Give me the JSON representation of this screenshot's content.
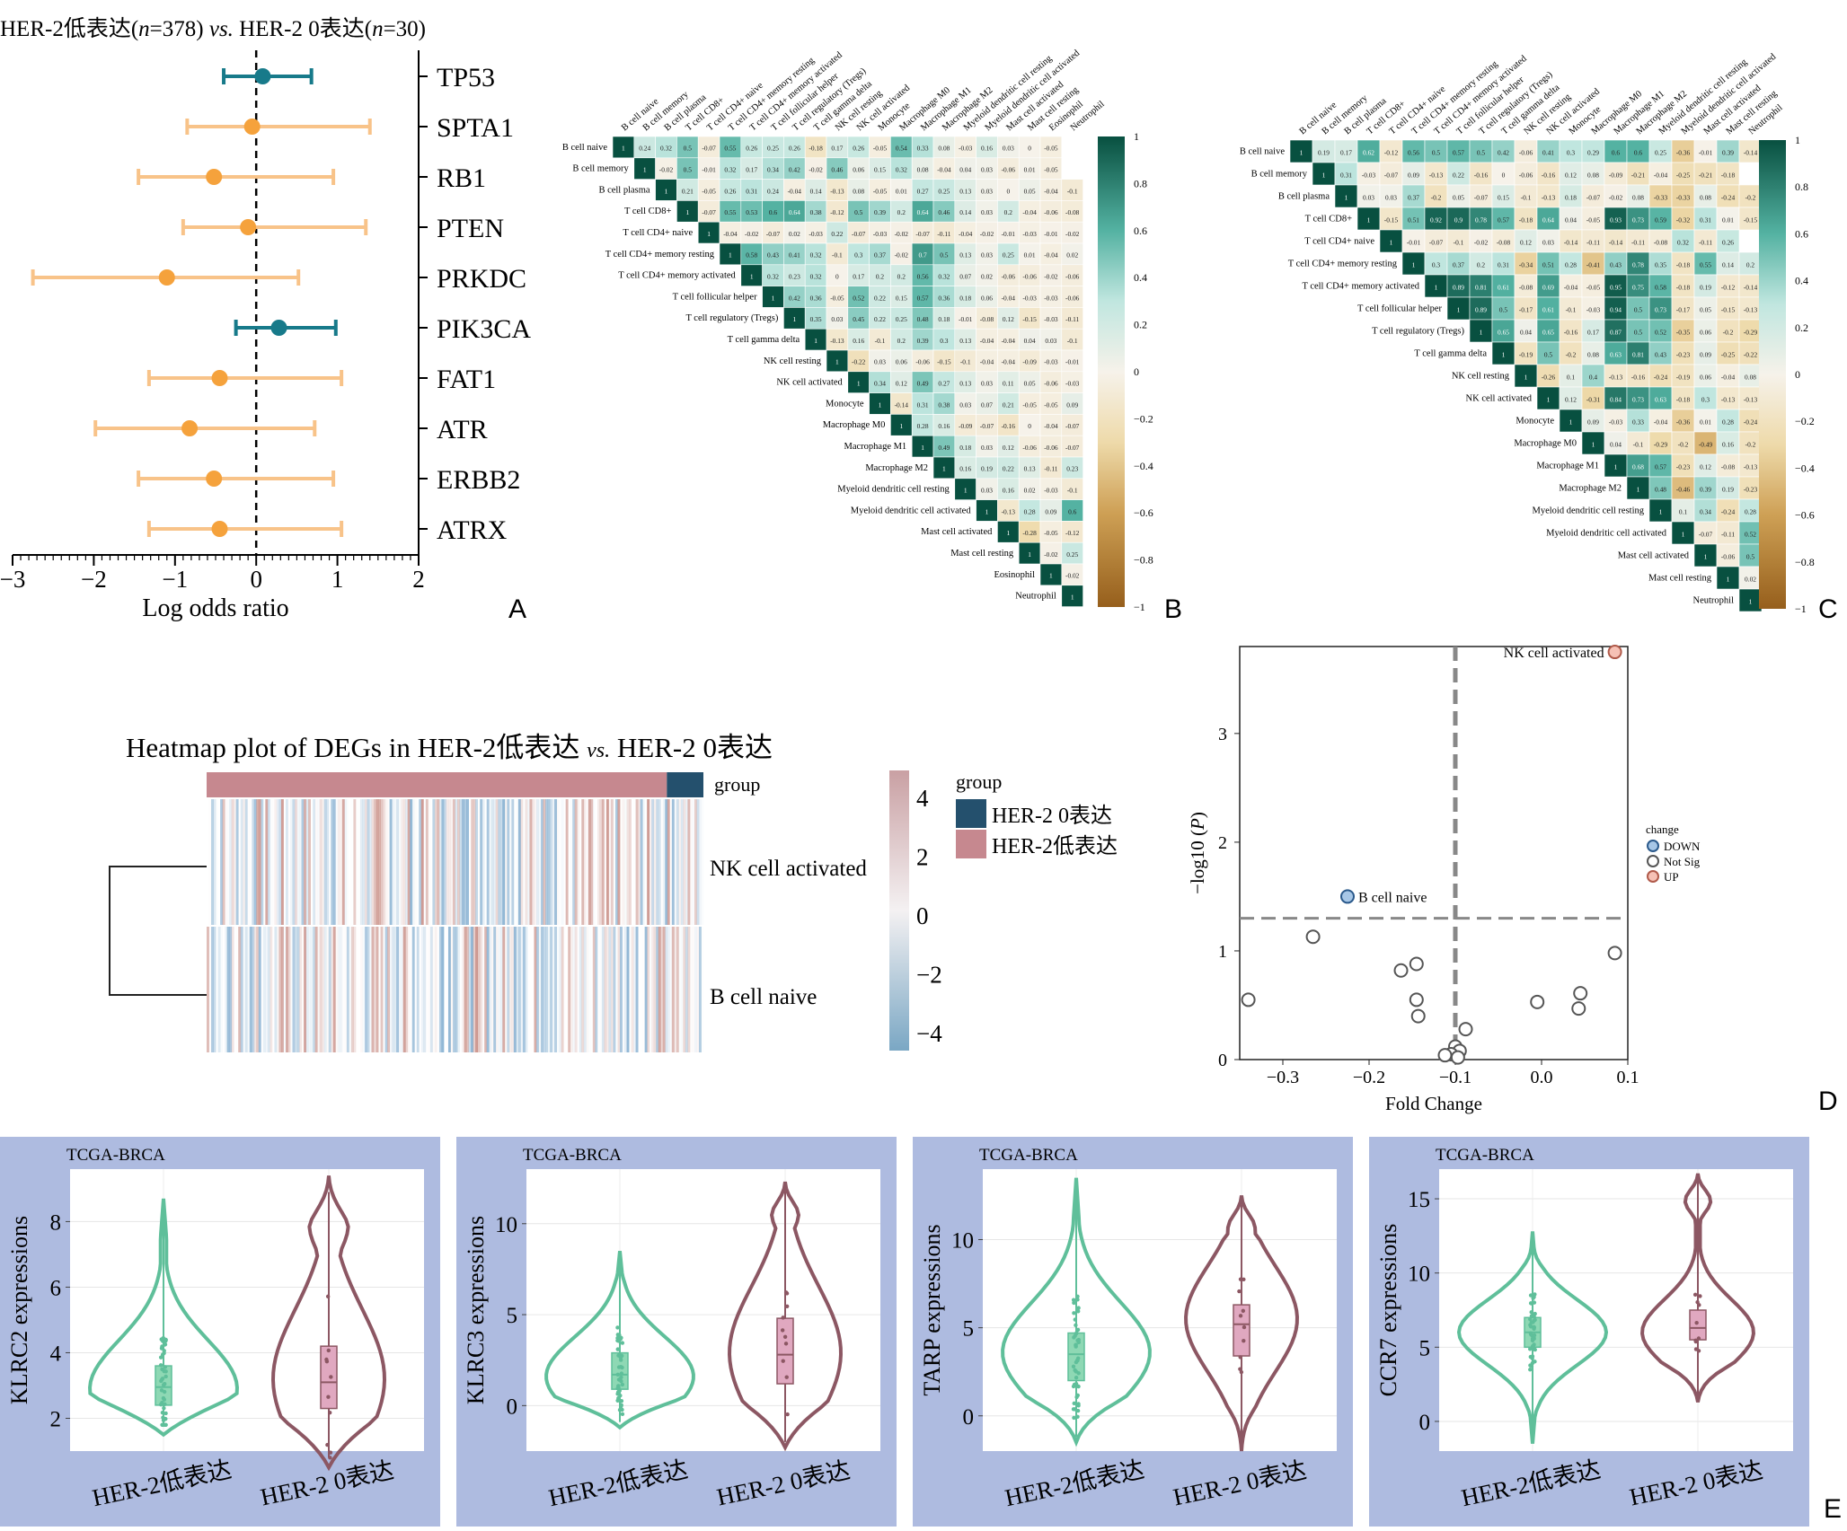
{
  "panel_letters": {
    "A": "A",
    "B": "B",
    "C": "C",
    "D": "D",
    "E": "E"
  },
  "chart_data": [
    {
      "id": "A",
      "type": "scatter",
      "subtype": "forest",
      "title_parts": [
        "HER-2低表达(",
        "n",
        "=378) ",
        "vs.",
        " HER-2 0表达(",
        "n",
        "=30)"
      ],
      "xlabel": "Log odds ratio",
      "xlim": [
        -3,
        2
      ],
      "xticks": [
        -3,
        -2,
        -1,
        0,
        1,
        2
      ],
      "xtick_labels": [
        "−3",
        "−2",
        "−1",
        "0",
        "1",
        "2"
      ],
      "reference_line": 0,
      "colors": {
        "teal": "#177a8a",
        "orange": "#f5a23c",
        "orange_ci": "#f8c389"
      },
      "genes": [
        {
          "name": "TP53",
          "or": 0.08,
          "lo": -0.4,
          "hi": 0.68,
          "color": "teal"
        },
        {
          "name": "SPTA1",
          "or": -0.05,
          "lo": -0.85,
          "hi": 1.4,
          "color": "orange"
        },
        {
          "name": "RB1",
          "or": -0.52,
          "lo": -1.45,
          "hi": 0.95,
          "color": "orange"
        },
        {
          "name": "PTEN",
          "or": -0.1,
          "lo": -0.9,
          "hi": 1.35,
          "color": "orange"
        },
        {
          "name": "PRKDC",
          "or": -1.1,
          "lo": -2.75,
          "hi": 0.52,
          "color": "orange"
        },
        {
          "name": "PIK3CA",
          "or": 0.28,
          "lo": -0.25,
          "hi": 0.98,
          "color": "teal"
        },
        {
          "name": "FAT1",
          "or": -0.45,
          "lo": -1.32,
          "hi": 1.05,
          "color": "orange"
        },
        {
          "name": "ATR",
          "or": -0.82,
          "lo": -1.98,
          "hi": 0.72,
          "color": "orange"
        },
        {
          "name": "ERBB2",
          "or": -0.52,
          "lo": -1.45,
          "hi": 0.95,
          "color": "orange"
        },
        {
          "name": "ATRX",
          "or": -0.45,
          "lo": -1.32,
          "hi": 1.05,
          "color": "orange"
        }
      ]
    },
    {
      "id": "B",
      "type": "heatmap",
      "subtype": "correlation-upper-triangle",
      "labels": [
        "B cell naive",
        "B cell memory",
        "B cell plasma",
        "T cell CD8+",
        "T cell CD4+ naive",
        "T cell CD4+ memory resting",
        "T cell CD4+ memory activated",
        "T cell follicular helper",
        "T cell regulatory (Tregs)",
        "T cell gamma delta",
        "NK cell resting",
        "NK cell activated",
        "Monocyte",
        "Macrophage M0",
        "Macrophage M1",
        "Macrophage M2",
        "Myeloid dendritic cell resting",
        "Myeloid dendritic cell activated",
        "Mast cell activated",
        "Mast cell resting",
        "Eosinophil",
        "Neutrophil"
      ],
      "colorbar_ticks": [
        1,
        0.8,
        0.6,
        0.4,
        0.2,
        0,
        -0.2,
        -0.4,
        -0.6,
        -0.8,
        -1
      ],
      "colorbar_labels": [
        "1",
        "0.8",
        "0.6",
        "0.4",
        "0.2",
        "0",
        "−0.2",
        "−0.4",
        "−0.6",
        "−0.8",
        "−1"
      ],
      "rows": [
        [
          1,
          0.24,
          0.32,
          0.5,
          -0.07,
          0.55,
          0.26,
          0.25,
          0.26,
          -0.18,
          0.17,
          0.26,
          -0.05,
          0.54,
          0.33,
          0.08,
          -0.03,
          0.16,
          0.03,
          0,
          -0.05
        ],
        [
          1,
          -0.02,
          0.5,
          -0.01,
          0.32,
          0.17,
          0.34,
          0.42,
          -0.02,
          0.46,
          0.06,
          0.15,
          0.32,
          0.08,
          -0.04,
          0.04,
          0.03,
          -0.06,
          0.01,
          -0.05
        ],
        [
          1,
          0.21,
          -0.05,
          0.26,
          0.31,
          0.24,
          -0.04,
          0.14,
          -0.13,
          0.08,
          -0.05,
          0.01,
          0.27,
          0.25,
          0.13,
          0.03,
          0,
          0.05,
          -0.04,
          -0.1
        ],
        [
          1,
          -0.07,
          0.55,
          0.53,
          0.6,
          0.64,
          0.38,
          -0.12,
          0.5,
          0.39,
          0.2,
          0.64,
          0.46,
          0.14,
          0.03,
          0.2,
          -0.04,
          -0.06,
          -0.08
        ],
        [
          1,
          -0.04,
          -0.02,
          -0.07,
          0.02,
          -0.03,
          0.22,
          -0.07,
          -0.03,
          -0.02,
          -0.07,
          -0.11,
          -0.04,
          -0.02,
          -0.01,
          -0.03,
          -0.01,
          -0.02
        ],
        [
          1,
          0.58,
          0.43,
          0.41,
          0.32,
          -0.1,
          0.3,
          0.37,
          -0.02,
          0.7,
          0.5,
          0.13,
          0.03,
          0.25,
          0.01,
          -0.04,
          0.02
        ],
        [
          1,
          0.32,
          0.23,
          0.32,
          0,
          0.17,
          0.2,
          0.2,
          0.56,
          0.32,
          0.07,
          0.02,
          -0.06,
          -0.06,
          -0.02,
          -0.06
        ],
        [
          1,
          0.42,
          0.36,
          -0.05,
          0.52,
          0.22,
          0.15,
          0.57,
          0.36,
          0.18,
          0.06,
          -0.04,
          -0.03,
          -0.03,
          -0.06
        ],
        [
          1,
          0.35,
          0.03,
          0.45,
          0.22,
          0.25,
          0.48,
          0.18,
          -0.01,
          -0.08,
          0.12,
          -0.15,
          -0.03,
          -0.11
        ],
        [
          1,
          -0.13,
          0.16,
          -0.1,
          0.2,
          0.39,
          0.3,
          0.13,
          -0.04,
          -0.04,
          0.04,
          0.03,
          -0.1
        ],
        [
          1,
          -0.22,
          0.03,
          0.06,
          -0.06,
          -0.15,
          -0.1,
          -0.04,
          -0.04,
          -0.09,
          -0.03,
          -0.01
        ],
        [
          1,
          0.34,
          0.12,
          0.49,
          0.27,
          0.13,
          0.03,
          0.11,
          0.05,
          -0.06,
          -0.03
        ],
        [
          1,
          -0.14,
          0.31,
          0.38,
          0.03,
          0.07,
          0.21,
          -0.05,
          -0.05,
          0.09
        ],
        [
          1,
          0.28,
          0.16,
          -0.09,
          -0.07,
          -0.16,
          0,
          -0.04,
          -0.07
        ],
        [
          1,
          0.49,
          0.18,
          0.03,
          0.12,
          -0.06,
          -0.06,
          -0.07
        ],
        [
          1,
          0.16,
          0.19,
          0.22,
          0.13,
          -0.11,
          0.23
        ],
        [
          1,
          0.03,
          0.16,
          0.02,
          -0.03,
          -0.1
        ],
        [
          1,
          -0.13,
          0.28,
          0.09,
          0.6
        ],
        [
          1,
          -0.28,
          -0.05,
          -0.12
        ],
        [
          1,
          -0.02,
          0.25
        ],
        [
          1,
          -0.02
        ],
        [
          1
        ]
      ]
    },
    {
      "id": "C",
      "type": "heatmap",
      "subtype": "correlation-upper-triangle",
      "labels": [
        "B cell naive",
        "B cell memory",
        "B cell plasma",
        "T cell CD8+",
        "T cell CD4+ naive",
        "T cell CD4+ memory resting",
        "T cell CD4+ memory activated",
        "T cell follicular helper",
        "T cell regulatory (Tregs)",
        "T cell gamma delta",
        "NK cell resting",
        "NK cell activated",
        "Monocyte",
        "Macrophage M0",
        "Macrophage M1",
        "Macrophage M2",
        "Myeloid dendritic cell resting",
        "Myeloid dendritic cell activated",
        "Mast cell activated",
        "Mast cell resting",
        "Neutrophil"
      ],
      "colorbar_ticks": [
        1,
        0.8,
        0.6,
        0.4,
        0.2,
        0,
        -0.2,
        -0.4,
        -0.6,
        -0.8,
        -1
      ],
      "colorbar_labels": [
        "1",
        "0.8",
        "0.6",
        "0.4",
        "0.2",
        "0",
        "−0.2",
        "−0.4",
        "−0.6",
        "−0.8",
        "−1"
      ],
      "rows": [
        [
          1,
          0.19,
          0.17,
          0.62,
          -0.12,
          0.56,
          0.5,
          0.57,
          0.5,
          0.42,
          -0.06,
          0.41,
          0.3,
          0.29,
          0.6,
          0.6,
          0.25,
          -0.36,
          -0.01,
          0.39,
          -0.14
        ],
        [
          1,
          0.31,
          -0.03,
          -0.07,
          0.09,
          -0.13,
          0.22,
          -0.16,
          0,
          -0.06,
          -0.16,
          0.12,
          0.08,
          -0.09,
          -0.21,
          -0.04,
          -0.25,
          -0.21,
          -0.18
        ],
        [
          1,
          0.03,
          0.03,
          0.37,
          -0.2,
          0.05,
          -0.07,
          0.15,
          -0.1,
          -0.13,
          0.18,
          -0.07,
          -0.02,
          0.08,
          -0.33,
          -0.33,
          0.08,
          -0.24,
          -0.2
        ],
        [
          1,
          -0.15,
          0.51,
          0.92,
          0.9,
          0.78,
          0.57,
          -0.18,
          0.64,
          0.04,
          -0.05,
          0.93,
          0.73,
          0.59,
          -0.32,
          0.31,
          0.01,
          -0.15
        ],
        [
          1,
          -0.01,
          -0.07,
          -0.1,
          -0.02,
          -0.08,
          0.12,
          0.03,
          -0.14,
          -0.11,
          -0.14,
          -0.11,
          -0.08,
          0.32,
          -0.11,
          0.26
        ],
        [
          1,
          0.3,
          0.37,
          0.2,
          0.31,
          -0.34,
          0.51,
          0.28,
          -0.41,
          0.43,
          0.78,
          0.35,
          -0.18,
          0.55,
          0.14,
          0.2
        ],
        [
          1,
          0.89,
          0.81,
          0.61,
          -0.08,
          0.69,
          -0.04,
          -0.05,
          0.95,
          0.75,
          0.58,
          -0.18,
          0.19,
          -0.12,
          -0.14
        ],
        [
          1,
          0.89,
          0.5,
          -0.17,
          0.61,
          -0.1,
          -0.03,
          0.94,
          0.5,
          0.73,
          -0.17,
          0.05,
          -0.15,
          -0.13
        ],
        [
          1,
          0.65,
          0.04,
          0.65,
          -0.16,
          0.17,
          0.87,
          0.5,
          0.52,
          -0.35,
          0.06,
          -0.2,
          -0.29
        ],
        [
          1,
          -0.19,
          0.5,
          -0.2,
          0.08,
          0.63,
          0.81,
          0.43,
          -0.23,
          0.09,
          -0.25,
          -0.22
        ],
        [
          1,
          -0.26,
          0.1,
          0.4,
          -0.13,
          -0.16,
          -0.24,
          -0.19,
          0.06,
          -0.04,
          0.08
        ],
        [
          1,
          0.12,
          -0.31,
          0.84,
          0.73,
          0.63,
          -0.18,
          0.3,
          -0.13,
          -0.13
        ],
        [
          1,
          0.09,
          -0.03,
          0.33,
          -0.04,
          -0.36,
          0.01,
          0.28,
          -0.24
        ],
        [
          1,
          0.04,
          -0.1,
          -0.29,
          -0.2,
          -0.49,
          0.16,
          -0.2
        ],
        [
          1,
          0.68,
          0.57,
          -0.23,
          0.12,
          -0.08,
          -0.13
        ],
        [
          1,
          0.48,
          -0.46,
          0.39,
          0.19,
          -0.23
        ],
        [
          1,
          0.1,
          0.34,
          -0.24,
          0.28
        ],
        [
          1,
          -0.07,
          -0.11,
          0.52
        ],
        [
          1,
          -0.06,
          0.5
        ],
        [
          1,
          0.02
        ],
        [
          1
        ]
      ]
    },
    {
      "id": "heatmap-degs",
      "type": "heatmap",
      "title_parts": [
        "Heatmap plot of DEGs in HER-2低表达 ",
        "vs.",
        " HER-2 0表达"
      ],
      "rows": [
        "NK cell activated",
        "B cell naive"
      ],
      "group_label": "group",
      "legend_title": "group",
      "groups": [
        {
          "name": "HER-2 0表达",
          "color": "#24506d",
          "n": 30
        },
        {
          "name": "HER-2低表达",
          "color": "#c6888f",
          "n": 378
        }
      ],
      "colorbar_ticks": [
        4,
        2,
        0,
        -2,
        -4
      ],
      "colorbar_labels": [
        "4",
        "2",
        "0",
        "−2",
        "−4"
      ]
    },
    {
      "id": "D",
      "type": "scatter",
      "subtype": "volcano",
      "xlabel": "Fold Change",
      "ylabel_parts": [
        "−log10 (",
        "P",
        ")"
      ],
      "xlim": [
        -0.35,
        0.1
      ],
      "ylim": [
        0,
        3.8
      ],
      "xticks": [
        -0.3,
        -0.2,
        -0.1,
        0.0,
        0.1
      ],
      "xtick_labels": [
        "−0.3",
        "−0.2",
        "−0.1",
        "0.0",
        "0.1"
      ],
      "yticks": [
        0,
        1,
        2,
        3
      ],
      "ytick_labels": [
        "0",
        "1",
        "2",
        "3"
      ],
      "vline": -0.1,
      "hline": 1.3,
      "legend_title": "change",
      "legend": [
        {
          "name": "DOWN",
          "color": "#a7c7e7",
          "stroke": "#2b5a8c"
        },
        {
          "name": "Not Sig",
          "color": "#ffffff",
          "stroke": "#555555"
        },
        {
          "name": "UP",
          "color": "#f6c1b5",
          "stroke": "#b05a4a"
        }
      ],
      "points": [
        {
          "x": 0.085,
          "y": 3.75,
          "class": "UP",
          "label": "NK cell activated"
        },
        {
          "x": -0.225,
          "y": 1.5,
          "class": "DOWN",
          "label": "B cell naive"
        },
        {
          "x": -0.265,
          "y": 1.13,
          "class": "Not Sig"
        },
        {
          "x": -0.34,
          "y": 0.55,
          "class": "Not Sig"
        },
        {
          "x": -0.145,
          "y": 0.88,
          "class": "Not Sig"
        },
        {
          "x": -0.163,
          "y": 0.82,
          "class": "Not Sig"
        },
        {
          "x": -0.145,
          "y": 0.55,
          "class": "Not Sig"
        },
        {
          "x": -0.143,
          "y": 0.4,
          "class": "Not Sig"
        },
        {
          "x": -0.088,
          "y": 0.28,
          "class": "Not Sig"
        },
        {
          "x": 0.085,
          "y": 0.98,
          "class": "Not Sig"
        },
        {
          "x": 0.045,
          "y": 0.61,
          "class": "Not Sig"
        },
        {
          "x": 0.043,
          "y": 0.47,
          "class": "Not Sig"
        },
        {
          "x": -0.005,
          "y": 0.53,
          "class": "Not Sig"
        },
        {
          "x": -0.1,
          "y": 0.12,
          "class": "Not Sig"
        },
        {
          "x": -0.095,
          "y": 0.08,
          "class": "Not Sig"
        },
        {
          "x": -0.105,
          "y": 0.05,
          "class": "Not Sig"
        },
        {
          "x": -0.097,
          "y": 0.02,
          "class": "Not Sig"
        },
        {
          "x": -0.112,
          "y": 0.04,
          "class": "Not Sig"
        }
      ]
    },
    {
      "id": "E",
      "type": "violin",
      "groups": [
        "HER-2低表达",
        "HER-2 0表达"
      ],
      "colors": {
        "group1": "#5fbf9a",
        "group2": "#8c5763",
        "box1": "#8ed8b4",
        "box2": "#e0a8c0"
      },
      "panels": [
        {
          "title": "TCGA-BRCA",
          "ylabel": "KLRC2 expressions",
          "ylim": [
            1,
            9.6
          ],
          "yticks": [
            2,
            4,
            6,
            8
          ],
          "ytick_labels": [
            "2",
            "4",
            "6",
            "8"
          ],
          "g1": {
            "min": 1.5,
            "max": 8.7,
            "q1": 2.4,
            "median": 2.95,
            "q3": 3.6,
            "mode": 2.9
          },
          "g2": {
            "min": 0.5,
            "max": 9.4,
            "q1": 2.3,
            "median": 3.1,
            "q3": 4.2,
            "mode": 3.2
          }
        },
        {
          "title": "TCGA-BRCA",
          "ylabel": "KLRC3 expressions",
          "ylim": [
            -2.5,
            13
          ],
          "yticks": [
            0,
            5,
            10
          ],
          "ytick_labels": [
            "0",
            "5",
            "10"
          ],
          "g1": {
            "min": -1.2,
            "max": 8.5,
            "q1": 0.9,
            "median": 1.7,
            "q3": 2.9,
            "mode": 1.6
          },
          "g2": {
            "min": -2.3,
            "max": 12.3,
            "q1": 1.2,
            "median": 2.8,
            "q3": 4.8,
            "mode": 2.9
          }
        },
        {
          "title": "TCGA-BRCA",
          "ylabel": "TARP expressions",
          "ylim": [
            -2,
            14
          ],
          "yticks": [
            0,
            5,
            10
          ],
          "ytick_labels": [
            "0",
            "5",
            "10"
          ],
          "g1": {
            "min": -1.5,
            "max": 13.5,
            "q1": 2.0,
            "median": 3.5,
            "q3": 4.7,
            "mode": 3.6
          },
          "g2": {
            "min": -2,
            "max": 12.5,
            "q1": 3.4,
            "median": 5.2,
            "q3": 6.3,
            "mode": 5.5
          }
        },
        {
          "title": "TCGA-BRCA",
          "ylabel": "CCR7 expressions",
          "ylim": [
            -2,
            17
          ],
          "yticks": [
            0,
            5,
            10,
            15
          ],
          "ytick_labels": [
            "0",
            "5",
            "10",
            "15"
          ],
          "g1": {
            "min": -1.5,
            "max": 12.8,
            "q1": 5.0,
            "median": 6.0,
            "q3": 7.0,
            "mode": 6.0
          },
          "g2": {
            "min": 1.3,
            "max": 16.7,
            "q1": 5.5,
            "median": 6.3,
            "q3": 7.5,
            "mode": 6.0
          }
        }
      ]
    }
  ]
}
